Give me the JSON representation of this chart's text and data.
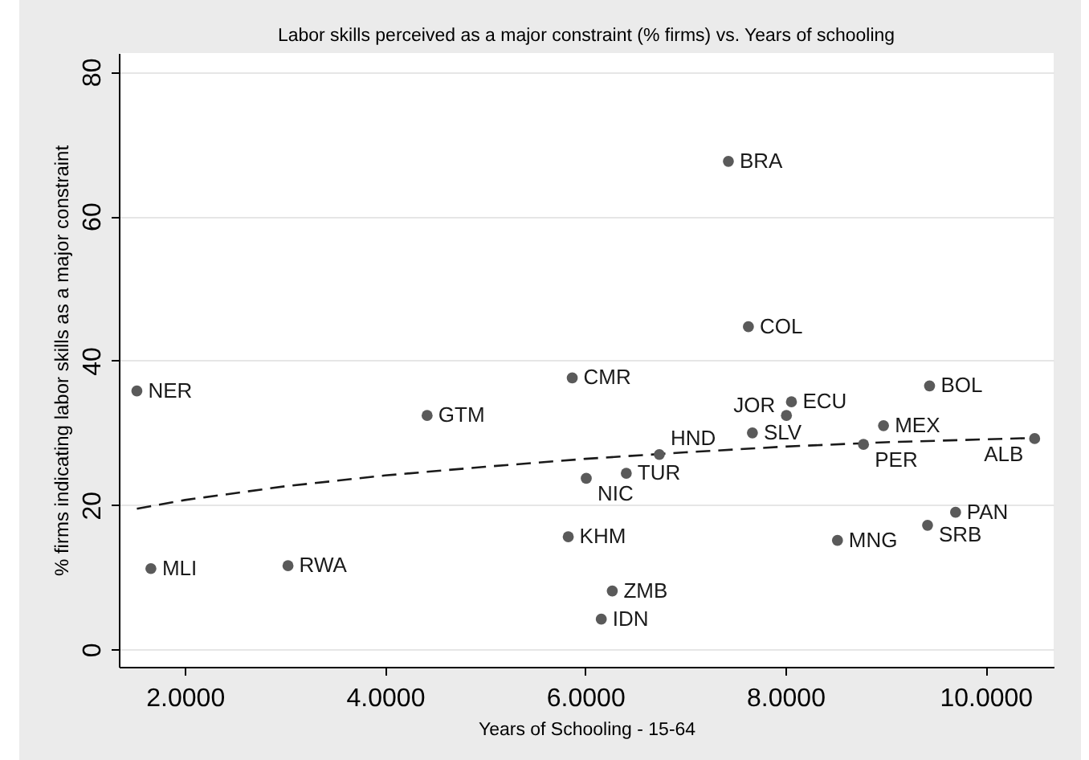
{
  "chart_data": {
    "type": "scatter",
    "title": "Labor skills perceived as a major constraint (% firms) vs. Years of schooling",
    "xlabel": "Years of Schooling - 15-64",
    "ylabel": "% firms indicating labor skills as a major constraint",
    "series": [
      {
        "type": "line",
        "color": "#1a1a1a",
        "line_style": "dashed",
        "marker": "none",
        "x": [
          1.52,
          2,
          3,
          4,
          5,
          6,
          7,
          8,
          9,
          10.49
        ],
        "values": [
          19.5,
          20.7,
          22.6,
          24.1,
          25.3,
          26.4,
          27.3,
          28.1,
          28.7,
          29.3
        ]
      },
      {
        "type": "scatter",
        "color": "#5a5a5a",
        "x": [
          1.52,
          1.66,
          3.03,
          4.42,
          5.83,
          5.87,
          6.01,
          6.16,
          6.27,
          6.41,
          6.74,
          7.43,
          7.63,
          7.67,
          8.01,
          8.06,
          8.52,
          8.78,
          8.98,
          9.42,
          9.44,
          9.7,
          10.49
        ],
        "values": [
          35.8,
          11.2,
          11.6,
          32.4,
          15.6,
          37.6,
          23.7,
          4.2,
          8.1,
          24.4,
          27.0,
          67.6,
          44.7,
          30.0,
          32.4,
          34.3,
          15.1,
          28.4,
          31.0,
          17.2,
          36.5,
          19.0,
          29.2
        ]
      }
    ],
    "xlim": [
      1.34,
      10.68
    ],
    "ylim": [
      -2.4,
      82.6
    ],
    "xticks": [
      {
        "value": 2,
        "label": "2.0000"
      },
      {
        "value": 4,
        "label": "4.0000"
      },
      {
        "value": 6,
        "label": "6.0000"
      },
      {
        "value": 8,
        "label": "8.0000"
      },
      {
        "value": 10,
        "label": "10.0000"
      }
    ],
    "yticks": [
      0,
      20,
      40,
      60,
      80
    ],
    "grid": "y",
    "marker": "circle",
    "annotations": [
      {
        "text": "NER",
        "x": 1.52,
        "y": 35.8
      },
      {
        "text": "MLI",
        "x": 1.66,
        "y": 11.2
      },
      {
        "text": "RWA",
        "x": 3.03,
        "y": 11.6
      },
      {
        "text": "GTM",
        "x": 4.42,
        "y": 32.4
      },
      {
        "text": "KHM",
        "x": 5.83,
        "y": 15.6
      },
      {
        "text": "CMR",
        "x": 5.87,
        "y": 37.6
      },
      {
        "text": "NIC",
        "x": 6.01,
        "y": 23.7
      },
      {
        "text": "IDN",
        "x": 6.16,
        "y": 4.2
      },
      {
        "text": "ZMB",
        "x": 6.27,
        "y": 8.1
      },
      {
        "text": "TUR",
        "x": 6.41,
        "y": 24.4
      },
      {
        "text": "HND",
        "x": 6.74,
        "y": 27.0
      },
      {
        "text": "BRA",
        "x": 7.43,
        "y": 67.6
      },
      {
        "text": "COL",
        "x": 7.63,
        "y": 44.7
      },
      {
        "text": "SLV",
        "x": 7.67,
        "y": 30.0
      },
      {
        "text": "JOR",
        "x": 8.01,
        "y": 32.4
      },
      {
        "text": "ECU",
        "x": 8.06,
        "y": 34.3
      },
      {
        "text": "MNG",
        "x": 8.52,
        "y": 15.1
      },
      {
        "text": "PER",
        "x": 8.78,
        "y": 28.4
      },
      {
        "text": "MEX",
        "x": 8.98,
        "y": 31.0
      },
      {
        "text": "SRB",
        "x": 9.42,
        "y": 17.2
      },
      {
        "text": "BOL",
        "x": 9.44,
        "y": 36.5
      },
      {
        "text": "PAN",
        "x": 9.7,
        "y": 19.0
      },
      {
        "text": "ALB",
        "x": 10.49,
        "y": 29.2
      }
    ]
  }
}
